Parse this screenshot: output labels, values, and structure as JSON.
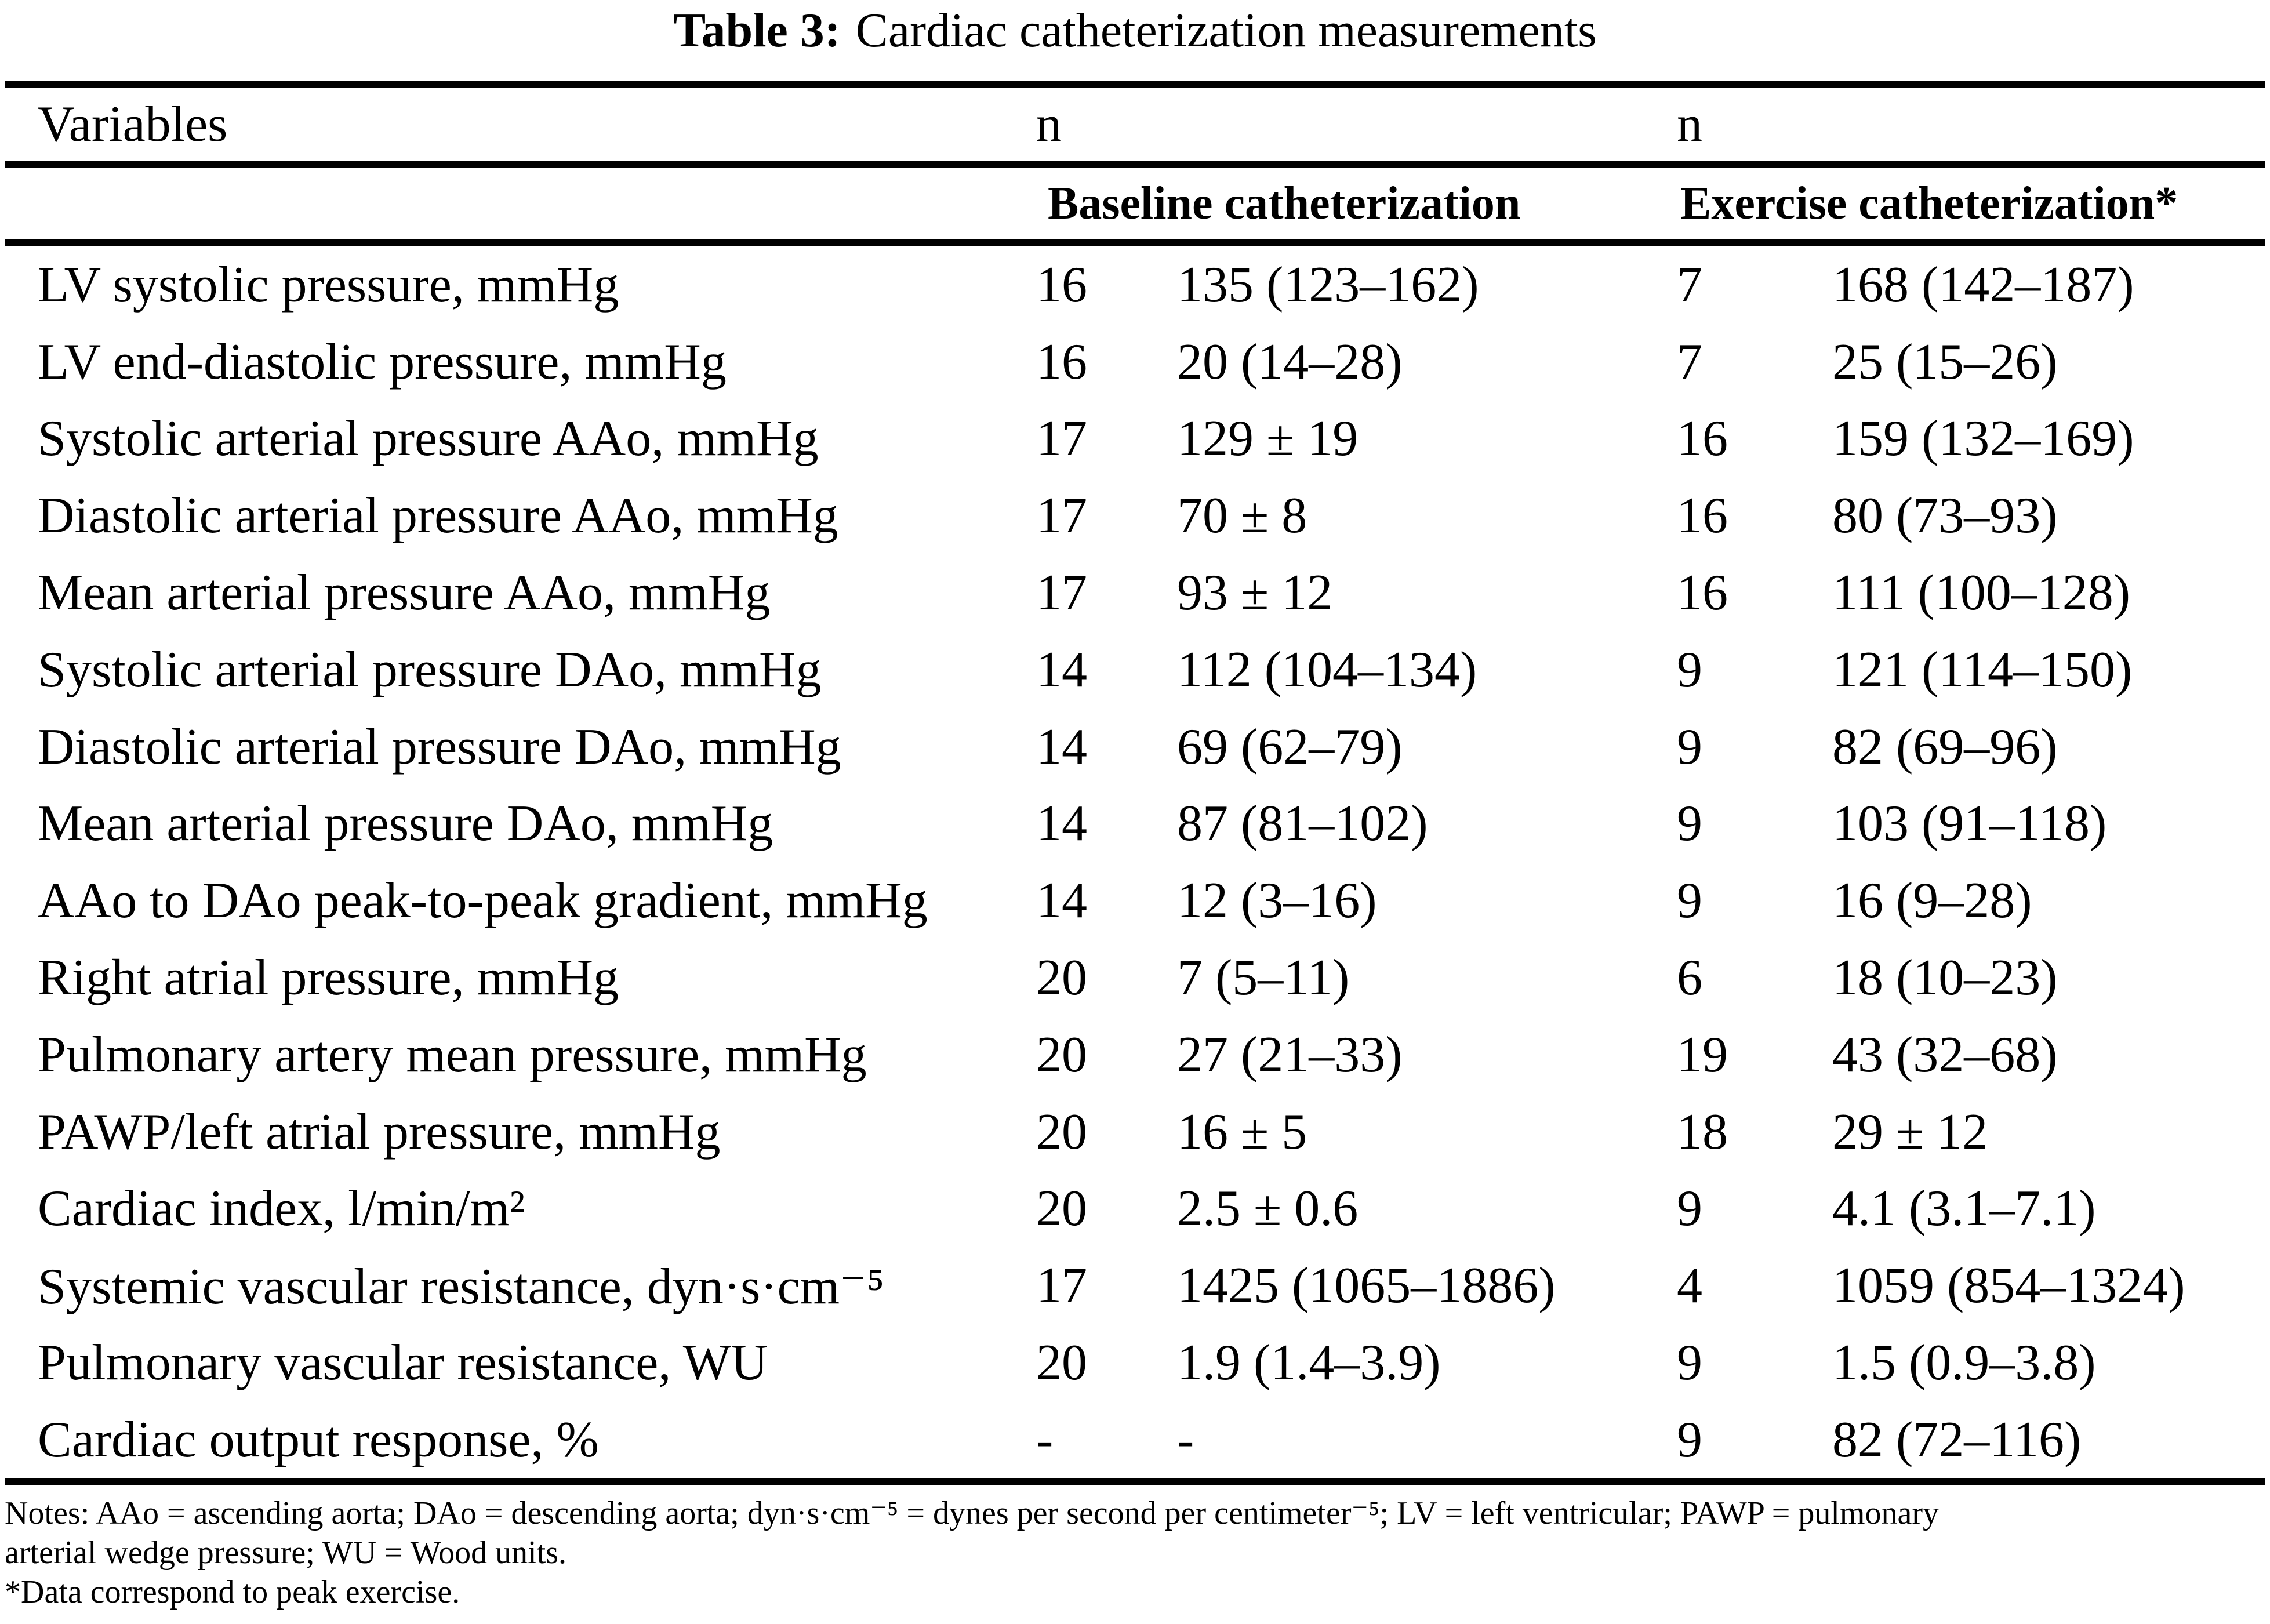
{
  "title": {
    "prefix": "Table 3:",
    "text": "Cardiac catheterization measurements"
  },
  "header": {
    "variables_label": "Variables",
    "n_label_baseline": "n",
    "n_label_exercise": "n",
    "baseline_group": "Baseline catheterization",
    "exercise_group": "Exercise catheterization*"
  },
  "table": {
    "rows": [
      {
        "variable": "LV systolic pressure, mmHg",
        "n_baseline": "16",
        "baseline_value": "135 (123–162)",
        "n_exercise": "7",
        "exercise_value": "168 (142–187)"
      },
      {
        "variable": "LV end-diastolic pressure, mmHg",
        "n_baseline": "16",
        "baseline_value": "20 (14–28)",
        "n_exercise": "7",
        "exercise_value": "25 (15–26)"
      },
      {
        "variable": "Systolic arterial pressure AAo, mmHg",
        "n_baseline": "17",
        "baseline_value": "129 ± 19",
        "n_exercise": "16",
        "exercise_value": "159 (132–169)"
      },
      {
        "variable": "Diastolic arterial pressure AAo, mmHg",
        "n_baseline": "17",
        "baseline_value": "70 ± 8",
        "n_exercise": "16",
        "exercise_value": "80 (73–93)"
      },
      {
        "variable": "Mean arterial pressure AAo, mmHg",
        "n_baseline": "17",
        "baseline_value": "93 ± 12",
        "n_exercise": "16",
        "exercise_value": "111 (100–128)"
      },
      {
        "variable": "Systolic arterial pressure DAo, mmHg",
        "n_baseline": "14",
        "baseline_value": "112 (104–134)",
        "n_exercise": "9",
        "exercise_value": "121 (114–150)"
      },
      {
        "variable": "Diastolic arterial pressure DAo, mmHg",
        "n_baseline": "14",
        "baseline_value": "69 (62–79)",
        "n_exercise": "9",
        "exercise_value": "82 (69–96)"
      },
      {
        "variable": "Mean arterial pressure DAo, mmHg",
        "n_baseline": "14",
        "baseline_value": "87 (81–102)",
        "n_exercise": "9",
        "exercise_value": "103 (91–118)"
      },
      {
        "variable": "AAo to DAo peak-to-peak gradient, mmHg",
        "n_baseline": "14",
        "baseline_value": "12 (3–16)",
        "n_exercise": "9",
        "exercise_value": "16 (9–28)"
      },
      {
        "variable": "Right atrial pressure, mmHg",
        "n_baseline": "20",
        "baseline_value": "7 (5–11)",
        "n_exercise": "6",
        "exercise_value": "18 (10–23)"
      },
      {
        "variable": "Pulmonary artery mean pressure, mmHg",
        "n_baseline": "20",
        "baseline_value": "27 (21–33)",
        "n_exercise": "19",
        "exercise_value": "43 (32–68)"
      },
      {
        "variable": "PAWP/left atrial pressure, mmHg",
        "n_baseline": "20",
        "baseline_value": "16 ± 5",
        "n_exercise": "18",
        "exercise_value": "29 ± 12"
      },
      {
        "variable": "Cardiac index, l/min/m²",
        "n_baseline": "20",
        "baseline_value": "2.5 ± 0.6",
        "n_exercise": "9",
        "exercise_value": "4.1 (3.1–7.1)"
      },
      {
        "variable": "Systemic vascular resistance, dyn·s·cm⁻⁵",
        "n_baseline": "17",
        "baseline_value": "1425 (1065–1886)",
        "n_exercise": "4",
        "exercise_value": "1059 (854–1324)"
      },
      {
        "variable": "Pulmonary vascular resistance, WU",
        "n_baseline": "20",
        "baseline_value": "1.9 (1.4–3.9)",
        "n_exercise": "9",
        "exercise_value": "1.5 (0.9–3.8)"
      },
      {
        "variable": "Cardiac output response, %",
        "n_baseline": "-",
        "baseline_value": "-",
        "n_exercise": "9",
        "exercise_value": "82 (72–116)"
      }
    ]
  },
  "notes": {
    "line1": "Notes: AAo = ascending aorta; DAo = descending aorta; dyn·s·cm⁻⁵ = dynes per second per centimeter⁻⁵; LV = left ventricular; PAWP = pulmonary",
    "line2": "arterial wedge pressure; WU = Wood units.",
    "line3": "*Data correspond to peak exercise."
  }
}
